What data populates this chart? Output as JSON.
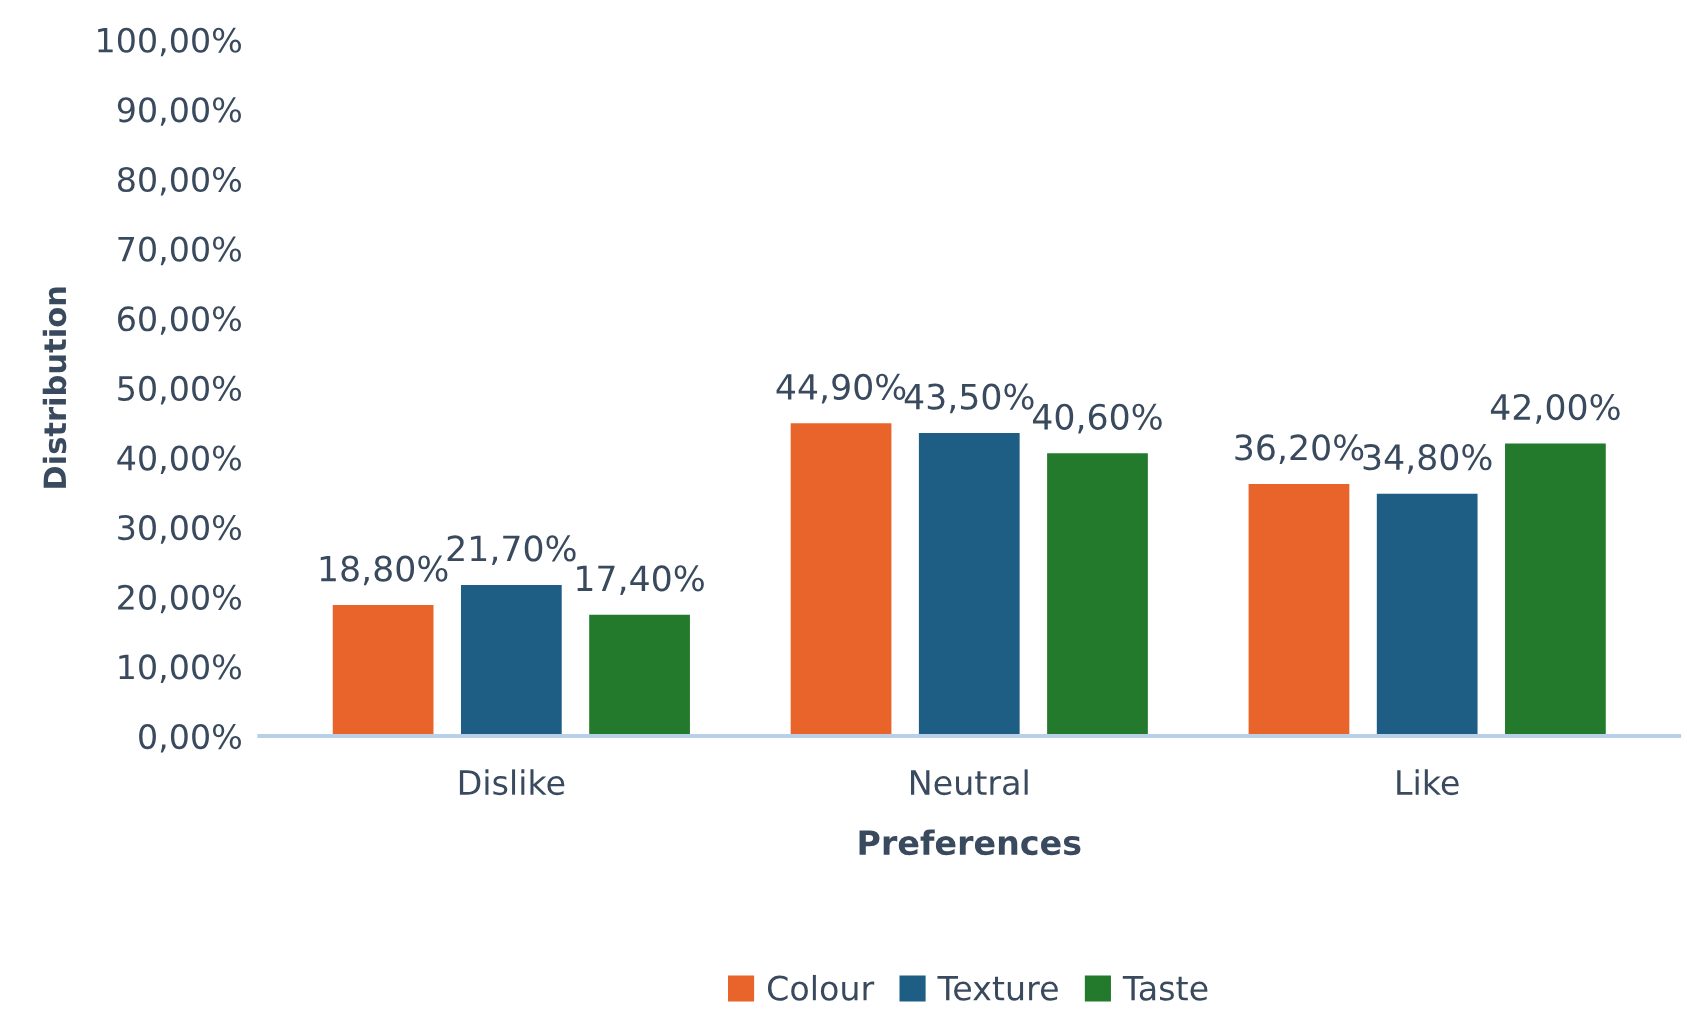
{
  "chart_data": {
    "type": "bar",
    "xlabel": "Preferences",
    "ylabel": "Distribution",
    "categories": [
      "Dislike",
      "Neutral",
      "Like"
    ],
    "series": [
      {
        "name": "Colour",
        "color": "#e8642a",
        "values": [
          18.8,
          44.9,
          36.2
        ],
        "value_labels": [
          "18,80%",
          "44,90%",
          "36,20%"
        ]
      },
      {
        "name": "Texture",
        "color": "#1e5e84",
        "values": [
          21.7,
          43.5,
          34.8
        ],
        "value_labels": [
          "21,70%",
          "43,50%",
          "34,80%"
        ]
      },
      {
        "name": "Taste",
        "color": "#237a2c",
        "values": [
          17.4,
          40.6,
          42.0
        ],
        "value_labels": [
          "17,40%",
          "40,60%",
          "42,00%"
        ]
      }
    ],
    "ylim": [
      0,
      100
    ],
    "yticks": [
      {
        "value": 0,
        "label": "0,00%"
      },
      {
        "value": 10,
        "label": "10,00%"
      },
      {
        "value": 20,
        "label": "20,00%"
      },
      {
        "value": 30,
        "label": "30,00%"
      },
      {
        "value": 40,
        "label": "40,00%"
      },
      {
        "value": 50,
        "label": "50,00%"
      },
      {
        "value": 60,
        "label": "60,00%"
      },
      {
        "value": 70,
        "label": "70,00%"
      },
      {
        "value": 80,
        "label": "80,00%"
      },
      {
        "value": 90,
        "label": "90,00%"
      },
      {
        "value": 100,
        "label": "100,00%"
      }
    ],
    "grid": false,
    "legend": "bottom"
  }
}
